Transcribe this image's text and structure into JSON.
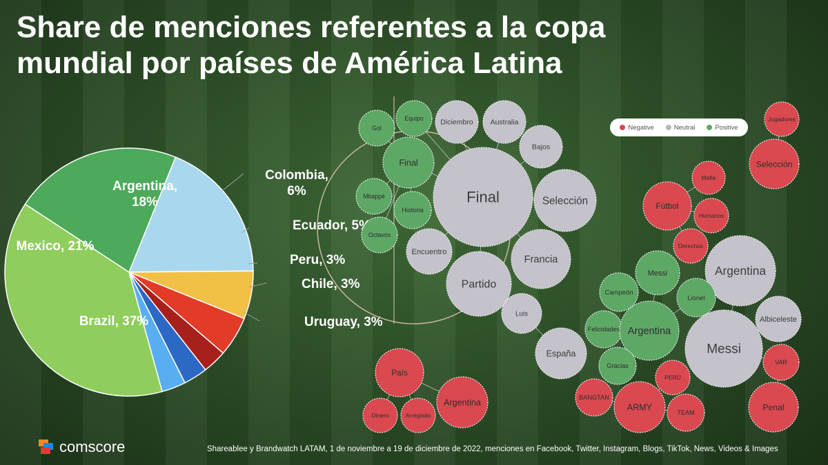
{
  "title": "Share de menciones referentes a la copa mundial por países de América Latina",
  "source": "Shareablee  y Brandwatch LATAM, 1 de noviembre a 19 de diciembre de 2022, menciones en Facebook, Twitter, Instagram, Blogs, TikTok, News, Videos & Images",
  "logo": {
    "text": "comscore"
  },
  "colors": {
    "negative": "#d9494f",
    "neutral": "#c4c2ca",
    "positive": "#5ea866"
  },
  "legend": [
    {
      "label": "Negative",
      "color": "#d9494f"
    },
    {
      "label": "Neutral",
      "color": "#b8b6bd"
    },
    {
      "label": "Positive",
      "color": "#5ea866"
    }
  ],
  "chart_data": [
    {
      "type": "pie",
      "slices": [
        {
          "label": "Argentina, 18%",
          "value": 18,
          "color": "#a9d8ee"
        },
        {
          "label": "Colombia, 6%",
          "value": 6,
          "color": "#f1c044"
        },
        {
          "label": "Ecuador, 5%",
          "value": 5,
          "color": "#e23b27"
        },
        {
          "label": "Peru, 3%",
          "value": 3,
          "color": "#a8201b"
        },
        {
          "label": "Chile, 3%",
          "value": 3,
          "color": "#2c69c4"
        },
        {
          "label": "Uruguay, 3%",
          "value": 3,
          "color": "#58aef0"
        },
        {
          "label": "Brazil, 37%",
          "value": 37,
          "color": "#8fcd5c"
        },
        {
          "label": "Mexico, 21%",
          "value": 21,
          "color": "#4caa5a"
        }
      ]
    },
    {
      "type": "bubble",
      "groups": [
        {
          "bubbles": [
            {
              "label": "Final",
              "sentiment": "neutral",
              "size": 72
            },
            {
              "label": "Gol",
              "sentiment": "positive",
              "size": 26
            },
            {
              "label": "Equipo",
              "sentiment": "positive",
              "size": 26
            },
            {
              "label": "Diciembro",
              "sentiment": "neutral",
              "size": 31
            },
            {
              "label": "Australia",
              "sentiment": "neutral",
              "size": 31
            },
            {
              "label": "Bajos",
              "sentiment": "neutral",
              "size": 31
            },
            {
              "label": "Final",
              "sentiment": "positive",
              "size": 37
            },
            {
              "label": "Selección",
              "sentiment": "neutral",
              "size": 45
            },
            {
              "label": "Mbappé",
              "sentiment": "positive",
              "size": 26
            },
            {
              "label": "Historia",
              "sentiment": "positive",
              "size": 27
            },
            {
              "label": "Octavos",
              "sentiment": "positive",
              "size": 26
            },
            {
              "label": "Encuentro",
              "sentiment": "neutral",
              "size": 33
            },
            {
              "label": "Francia",
              "sentiment": "neutral",
              "size": 43
            },
            {
              "label": "Partido",
              "sentiment": "neutral",
              "size": 47
            },
            {
              "label": "Luis",
              "sentiment": "neutral",
              "size": 29
            },
            {
              "label": "España",
              "sentiment": "neutral",
              "size": 37
            }
          ]
        },
        {
          "bubbles": [
            {
              "label": "País",
              "sentiment": "negative",
              "size": 35
            },
            {
              "label": "Argentina",
              "sentiment": "negative",
              "size": 37
            },
            {
              "label": "Dinero",
              "sentiment": "negative",
              "size": 25
            },
            {
              "label": "Arreglado",
              "sentiment": "negative",
              "size": 25
            }
          ]
        },
        {
          "bubbles": [
            {
              "label": "Jugadores",
              "sentiment": "negative",
              "size": 25
            },
            {
              "label": "Selección",
              "sentiment": "negative",
              "size": 36
            },
            {
              "label": "Mafia",
              "sentiment": "negative",
              "size": 24
            },
            {
              "label": "Fútbol",
              "sentiment": "negative",
              "size": 35
            },
            {
              "label": "Humanos",
              "sentiment": "negative",
              "size": 25
            },
            {
              "label": "Derechos",
              "sentiment": "negative",
              "size": 25
            },
            {
              "label": "Messi",
              "sentiment": "positive",
              "size": 32
            },
            {
              "label": "Argentina",
              "sentiment": "neutral",
              "size": 51
            },
            {
              "label": "Campeón",
              "sentiment": "positive",
              "size": 28
            },
            {
              "label": "Lionel",
              "sentiment": "positive",
              "size": 28
            },
            {
              "label": "Felicidades",
              "sentiment": "positive",
              "size": 27
            },
            {
              "label": "Argentina",
              "sentiment": "positive",
              "size": 43
            },
            {
              "label": "Albiceleste",
              "sentiment": "neutral",
              "size": 33
            },
            {
              "label": "Messi",
              "sentiment": "neutral",
              "size": 56
            },
            {
              "label": "Gracias",
              "sentiment": "positive",
              "size": 27
            },
            {
              "label": "VAR",
              "sentiment": "negative",
              "size": 26
            },
            {
              "label": "PERÚ",
              "sentiment": "negative",
              "size": 25
            },
            {
              "label": "BANGTAN",
              "sentiment": "negative",
              "size": 27
            },
            {
              "label": "ARMY",
              "sentiment": "negative",
              "size": 37
            },
            {
              "label": "TEAM",
              "sentiment": "negative",
              "size": 27
            },
            {
              "label": "Penal",
              "sentiment": "negative",
              "size": 36
            }
          ]
        }
      ]
    }
  ]
}
